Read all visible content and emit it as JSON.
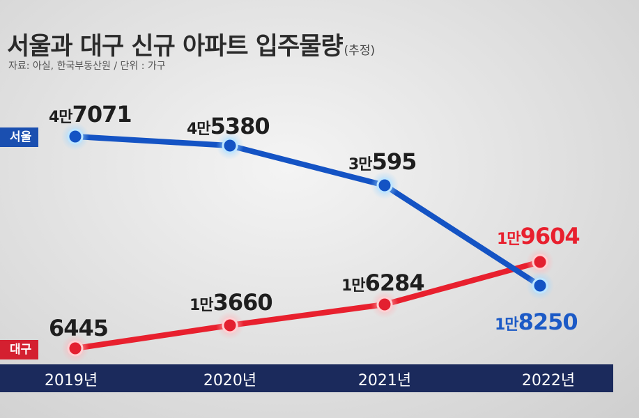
{
  "header": {
    "title": "서울과 대구 신규 아파트 입주물량",
    "subtitle": "(추정)",
    "source": "자료: 아실, 한국부동산원 / 단위 : 가구"
  },
  "chart_data": {
    "type": "line",
    "title": "서울과 대구 신규 아파트 입주물량",
    "categories": [
      "2019년",
      "2020년",
      "2021년",
      "2022년"
    ],
    "series": [
      {
        "name": "서울",
        "color": "#1a4fb0",
        "values": [
          47071,
          45380,
          30595,
          18250
        ],
        "labels": [
          {
            "unit": "4만",
            "rest": "7071"
          },
          {
            "unit": "4만",
            "rest": "5380"
          },
          {
            "unit": "3만",
            "rest": "595"
          },
          {
            "unit": "1만",
            "rest": "8250"
          }
        ]
      },
      {
        "name": "대구",
        "color": "#e8202e",
        "values": [
          6445,
          13660,
          16284,
          19604
        ],
        "labels": [
          {
            "unit": "",
            "rest": "6445"
          },
          {
            "unit": "1만",
            "rest": "3660"
          },
          {
            "unit": "1만",
            "rest": "6284"
          },
          {
            "unit": "1만",
            "rest": "9604"
          }
        ]
      }
    ]
  }
}
